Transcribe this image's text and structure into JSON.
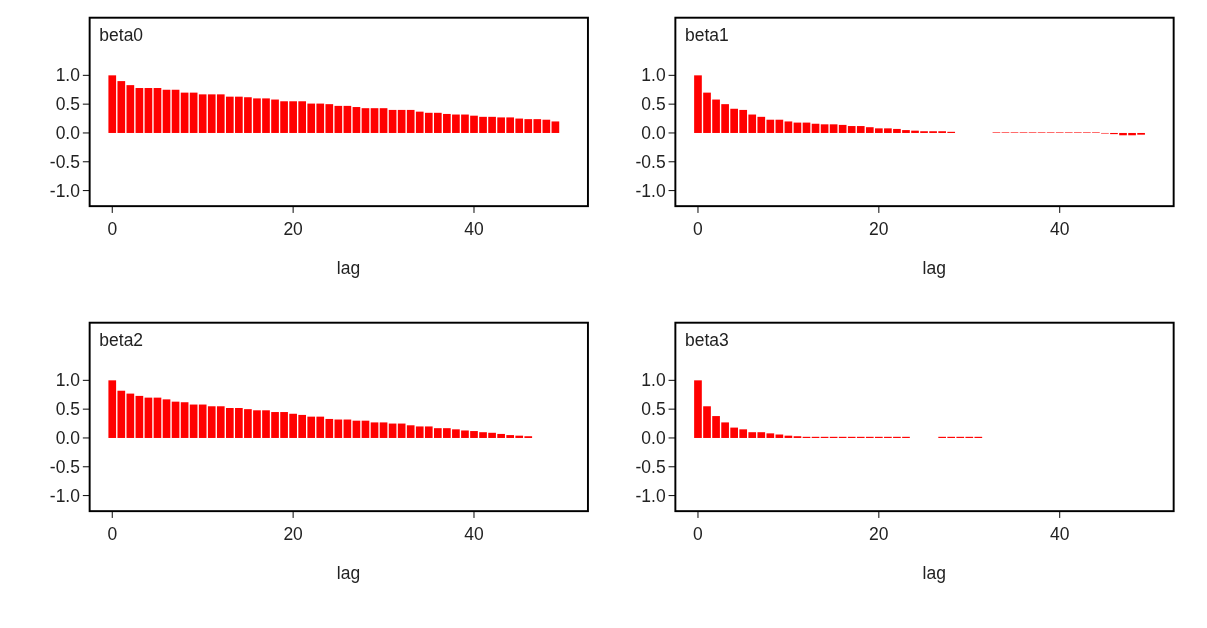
{
  "chart_data": [
    {
      "type": "bar",
      "title": "beta0",
      "xlabel": "lag",
      "color": "#ff0000",
      "xlim": [
        -2.5,
        52.6
      ],
      "ylim": [
        -1.27,
        2.0
      ],
      "xticks": [
        0,
        20,
        40
      ],
      "yticks": [
        {
          "value": -1,
          "label": "-1.0"
        },
        {
          "value": -0.5,
          "label": "-0.5"
        },
        {
          "value": 0,
          "label": "0.0"
        },
        {
          "value": 0.5,
          "label": "0.5"
        },
        {
          "value": 1,
          "label": "1.0"
        }
      ],
      "x": [
        0,
        1,
        2,
        3,
        4,
        5,
        6,
        7,
        8,
        9,
        10,
        11,
        12,
        13,
        14,
        15,
        16,
        17,
        18,
        19,
        20,
        21,
        22,
        23,
        24,
        25,
        26,
        27,
        28,
        29,
        30,
        31,
        32,
        33,
        34,
        35,
        36,
        37,
        38,
        39,
        40,
        41,
        42,
        43,
        44,
        45,
        46,
        47,
        48,
        49
      ],
      "values": [
        1.0,
        0.9,
        0.83,
        0.78,
        0.78,
        0.78,
        0.75,
        0.75,
        0.7,
        0.7,
        0.67,
        0.67,
        0.67,
        0.63,
        0.63,
        0.62,
        0.6,
        0.6,
        0.58,
        0.55,
        0.55,
        0.55,
        0.51,
        0.51,
        0.5,
        0.47,
        0.47,
        0.45,
        0.43,
        0.43,
        0.43,
        0.4,
        0.4,
        0.4,
        0.37,
        0.35,
        0.35,
        0.33,
        0.32,
        0.32,
        0.3,
        0.28,
        0.28,
        0.27,
        0.27,
        0.25,
        0.24,
        0.24,
        0.23,
        0.2
      ]
    },
    {
      "type": "bar",
      "title": "beta1",
      "xlabel": "lag",
      "color": "#ff0000",
      "xlim": [
        -2.5,
        52.6
      ],
      "ylim": [
        -1.27,
        2.0
      ],
      "xticks": [
        0,
        20,
        40
      ],
      "yticks": [
        {
          "value": -1,
          "label": "-1.0"
        },
        {
          "value": -0.5,
          "label": "-0.5"
        },
        {
          "value": 0,
          "label": "0.0"
        },
        {
          "value": 0.5,
          "label": "0.5"
        },
        {
          "value": 1,
          "label": "1.0"
        }
      ],
      "x": [
        0,
        1,
        2,
        3,
        4,
        5,
        6,
        7,
        8,
        9,
        10,
        11,
        12,
        13,
        14,
        15,
        16,
        17,
        18,
        19,
        20,
        21,
        22,
        23,
        24,
        25,
        26,
        27,
        28,
        29,
        30,
        31,
        32,
        33,
        34,
        35,
        36,
        37,
        38,
        39,
        40,
        41,
        42,
        43,
        44,
        45,
        46,
        47,
        48,
        49
      ],
      "values": [
        1.0,
        0.7,
        0.58,
        0.5,
        0.42,
        0.4,
        0.32,
        0.28,
        0.23,
        0.23,
        0.2,
        0.18,
        0.18,
        0.16,
        0.15,
        0.15,
        0.14,
        0.12,
        0.12,
        0.1,
        0.08,
        0.08,
        0.07,
        0.05,
        0.04,
        0.03,
        0.03,
        0.03,
        0.02,
        0,
        0,
        0,
        0,
        0.01,
        0.01,
        0.01,
        0.01,
        0.01,
        0.01,
        0.01,
        0.01,
        0.01,
        0.01,
        0.01,
        0.01,
        -0.01,
        -0.02,
        -0.04,
        -0.04,
        -0.03
      ]
    },
    {
      "type": "bar",
      "title": "beta2",
      "xlabel": "lag",
      "color": "#ff0000",
      "xlim": [
        -2.5,
        52.6
      ],
      "ylim": [
        -1.27,
        2.0
      ],
      "xticks": [
        0,
        20,
        40
      ],
      "yticks": [
        {
          "value": -1,
          "label": "-1.0"
        },
        {
          "value": -0.5,
          "label": "-0.5"
        },
        {
          "value": 0,
          "label": "0.0"
        },
        {
          "value": 0.5,
          "label": "0.5"
        },
        {
          "value": 1,
          "label": "1.0"
        }
      ],
      "x": [
        0,
        1,
        2,
        3,
        4,
        5,
        6,
        7,
        8,
        9,
        10,
        11,
        12,
        13,
        14,
        15,
        16,
        17,
        18,
        19,
        20,
        21,
        22,
        23,
        24,
        25,
        26,
        27,
        28,
        29,
        30,
        31,
        32,
        33,
        34,
        35,
        36,
        37,
        38,
        39,
        40,
        41,
        42,
        43,
        44,
        45,
        46
      ],
      "values": [
        1.0,
        0.82,
        0.77,
        0.73,
        0.7,
        0.7,
        0.67,
        0.63,
        0.62,
        0.58,
        0.58,
        0.55,
        0.55,
        0.52,
        0.52,
        0.5,
        0.48,
        0.48,
        0.45,
        0.45,
        0.42,
        0.4,
        0.37,
        0.37,
        0.33,
        0.32,
        0.32,
        0.3,
        0.3,
        0.27,
        0.27,
        0.25,
        0.25,
        0.22,
        0.2,
        0.2,
        0.17,
        0.17,
        0.15,
        0.13,
        0.12,
        0.1,
        0.09,
        0.07,
        0.05,
        0.04,
        0.03
      ]
    },
    {
      "type": "bar",
      "title": "beta3",
      "xlabel": "lag",
      "color": "#ff0000",
      "xlim": [
        -2.5,
        52.6
      ],
      "ylim": [
        -1.27,
        2.0
      ],
      "xticks": [
        0,
        20,
        40
      ],
      "yticks": [
        {
          "value": -1,
          "label": "-1.0"
        },
        {
          "value": -0.5,
          "label": "-0.5"
        },
        {
          "value": 0,
          "label": "0.0"
        },
        {
          "value": 0.5,
          "label": "0.5"
        },
        {
          "value": 1,
          "label": "1.0"
        }
      ],
      "x": [
        0,
        1,
        2,
        3,
        4,
        5,
        6,
        7,
        8,
        9,
        10,
        11,
        12,
        13,
        14,
        15,
        16,
        17,
        18,
        19,
        20,
        21,
        22,
        23,
        24,
        25,
        26,
        27,
        28,
        29,
        30,
        31
      ],
      "values": [
        1.0,
        0.55,
        0.38,
        0.27,
        0.18,
        0.15,
        0.1,
        0.1,
        0.08,
        0.06,
        0.04,
        0.03,
        0.02,
        0.02,
        0.02,
        0.02,
        0.02,
        0.02,
        0.02,
        0.02,
        0.02,
        0.02,
        0.02,
        0.02,
        0,
        0,
        0,
        0.02,
        0.02,
        0.02,
        0.02,
        0.02
      ]
    }
  ]
}
